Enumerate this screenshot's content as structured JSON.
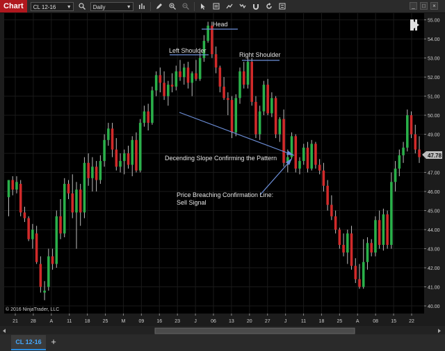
{
  "toolbar": {
    "chart_label": "Chart",
    "instrument": "CL 12-16",
    "interval": "Daily",
    "icons": [
      "search-icon",
      "bars-type-icon",
      "pencil-icon",
      "zoom-in-icon",
      "zoom-out-icon",
      "pointer-icon",
      "data-box-icon",
      "strategies-icon",
      "indicators-icon",
      "magnet-icon",
      "reload-icon",
      "properties-icon"
    ]
  },
  "window_buttons": [
    "minimize",
    "maximize",
    "close"
  ],
  "bottom_tabs": {
    "instrument_tab": "CL 12-16",
    "add_label": "+"
  },
  "chart_data": {
    "type": "candlestick",
    "price_axis": {
      "ylim": [
        39.6,
        55.35
      ],
      "ticks": [
        "55.00",
        "54.00",
        "53.00",
        "52.00",
        "51.00",
        "50.00",
        "49.00",
        "48.00",
        "47.00",
        "46.00",
        "45.00",
        "44.00",
        "43.00",
        "42.00",
        "41.00",
        "40.00"
      ],
      "last_price": "47.78"
    },
    "time_axis": {
      "labels": [
        "21",
        "28",
        "A",
        "11",
        "18",
        "25",
        "M",
        "09",
        "16",
        "23",
        "J",
        "06",
        "13",
        "20",
        "27",
        "J",
        "11",
        "18",
        "25",
        "A",
        "08",
        "15",
        "22"
      ]
    },
    "candles": [
      {
        "o": 45.7,
        "h": 46.6,
        "l": 44.7,
        "c": 46.6
      },
      {
        "o": 46.6,
        "h": 46.8,
        "l": 45.8,
        "c": 46.1
      },
      {
        "o": 46.1,
        "h": 46.8,
        "l": 45.9,
        "c": 46.5
      },
      {
        "o": 46.4,
        "h": 46.6,
        "l": 44.7,
        "c": 44.9
      },
      {
        "o": 44.9,
        "h": 45.2,
        "l": 44.4,
        "c": 44.6
      },
      {
        "o": 44.6,
        "h": 44.7,
        "l": 43.4,
        "c": 43.5
      },
      {
        "o": 43.5,
        "h": 44.3,
        "l": 43.0,
        "c": 44.0
      },
      {
        "o": 43.8,
        "h": 44.2,
        "l": 42.2,
        "c": 42.3
      },
      {
        "o": 42.2,
        "h": 42.6,
        "l": 40.7,
        "c": 41.0
      },
      {
        "o": 40.7,
        "h": 41.3,
        "l": 40.3,
        "c": 40.8
      },
      {
        "o": 41.0,
        "h": 43.0,
        "l": 40.8,
        "c": 42.6
      },
      {
        "o": 42.6,
        "h": 43.0,
        "l": 41.9,
        "c": 42.2
      },
      {
        "o": 42.2,
        "h": 45.0,
        "l": 42.0,
        "c": 44.7
      },
      {
        "o": 44.7,
        "h": 45.6,
        "l": 43.5,
        "c": 43.8
      },
      {
        "o": 43.8,
        "h": 46.7,
        "l": 43.6,
        "c": 46.4
      },
      {
        "o": 46.4,
        "h": 46.6,
        "l": 45.6,
        "c": 45.9
      },
      {
        "o": 45.9,
        "h": 46.9,
        "l": 44.6,
        "c": 44.9
      },
      {
        "o": 44.9,
        "h": 46.5,
        "l": 43.0,
        "c": 46.1
      },
      {
        "o": 46.1,
        "h": 46.4,
        "l": 44.2,
        "c": 44.9
      },
      {
        "o": 44.9,
        "h": 47.8,
        "l": 44.6,
        "c": 47.5
      },
      {
        "o": 47.5,
        "h": 48.0,
        "l": 46.3,
        "c": 46.7
      },
      {
        "o": 46.7,
        "h": 47.8,
        "l": 46.0,
        "c": 47.3
      },
      {
        "o": 47.3,
        "h": 47.6,
        "l": 46.0,
        "c": 46.6
      },
      {
        "o": 46.6,
        "h": 47.9,
        "l": 46.4,
        "c": 47.6
      },
      {
        "o": 47.6,
        "h": 49.0,
        "l": 47.3,
        "c": 48.7
      },
      {
        "o": 48.7,
        "h": 49.6,
        "l": 48.4,
        "c": 49.3
      },
      {
        "o": 49.3,
        "h": 49.6,
        "l": 47.8,
        "c": 48.2
      },
      {
        "o": 48.2,
        "h": 48.8,
        "l": 47.1,
        "c": 47.3
      },
      {
        "o": 47.3,
        "h": 48.0,
        "l": 47.0,
        "c": 47.6
      },
      {
        "o": 47.6,
        "h": 48.2,
        "l": 46.9,
        "c": 48.0
      },
      {
        "o": 48.0,
        "h": 48.4,
        "l": 47.2,
        "c": 47.4
      },
      {
        "o": 47.4,
        "h": 48.9,
        "l": 46.8,
        "c": 48.7
      },
      {
        "o": 48.7,
        "h": 49.1,
        "l": 47.0,
        "c": 47.1
      },
      {
        "o": 47.1,
        "h": 49.8,
        "l": 47.0,
        "c": 49.6
      },
      {
        "o": 49.6,
        "h": 50.5,
        "l": 49.4,
        "c": 50.2
      },
      {
        "o": 50.2,
        "h": 50.6,
        "l": 49.2,
        "c": 49.6
      },
      {
        "o": 49.6,
        "h": 51.5,
        "l": 49.5,
        "c": 51.3
      },
      {
        "o": 51.3,
        "h": 52.3,
        "l": 51.0,
        "c": 52.1
      },
      {
        "o": 52.1,
        "h": 52.5,
        "l": 51.2,
        "c": 51.7
      },
      {
        "o": 51.7,
        "h": 52.3,
        "l": 50.8,
        "c": 51.0
      },
      {
        "o": 51.0,
        "h": 51.8,
        "l": 50.5,
        "c": 51.6
      },
      {
        "o": 51.6,
        "h": 52.2,
        "l": 51.2,
        "c": 51.5
      },
      {
        "o": 51.5,
        "h": 52.6,
        "l": 51.3,
        "c": 52.3
      },
      {
        "o": 52.3,
        "h": 52.9,
        "l": 51.8,
        "c": 52.0
      },
      {
        "o": 52.0,
        "h": 52.7,
        "l": 51.6,
        "c": 52.5
      },
      {
        "o": 52.5,
        "h": 52.8,
        "l": 51.4,
        "c": 51.7
      },
      {
        "o": 51.7,
        "h": 52.3,
        "l": 51.0,
        "c": 52.2
      },
      {
        "o": 52.2,
        "h": 52.9,
        "l": 51.8,
        "c": 51.9
      },
      {
        "o": 51.9,
        "h": 53.3,
        "l": 51.8,
        "c": 53.0
      },
      {
        "o": 53.0,
        "h": 54.2,
        "l": 52.8,
        "c": 53.9
      },
      {
        "o": 53.9,
        "h": 54.9,
        "l": 53.8,
        "c": 54.7
      },
      {
        "o": 54.7,
        "h": 54.9,
        "l": 53.0,
        "c": 53.2
      },
      {
        "o": 53.2,
        "h": 53.6,
        "l": 52.2,
        "c": 52.5
      },
      {
        "o": 52.5,
        "h": 52.6,
        "l": 51.2,
        "c": 51.5
      },
      {
        "o": 51.5,
        "h": 52.0,
        "l": 50.8,
        "c": 50.9
      },
      {
        "o": 50.9,
        "h": 51.2,
        "l": 50.0,
        "c": 50.8
      },
      {
        "o": 50.8,
        "h": 51.0,
        "l": 48.8,
        "c": 49.1
      },
      {
        "o": 49.1,
        "h": 51.1,
        "l": 48.9,
        "c": 50.9
      },
      {
        "o": 50.9,
        "h": 52.5,
        "l": 50.6,
        "c": 52.3
      },
      {
        "o": 52.3,
        "h": 52.8,
        "l": 51.4,
        "c": 51.6
      },
      {
        "o": 51.6,
        "h": 53.0,
        "l": 51.4,
        "c": 52.8
      },
      {
        "o": 52.8,
        "h": 53.0,
        "l": 50.5,
        "c": 50.7
      },
      {
        "o": 50.7,
        "h": 51.0,
        "l": 48.8,
        "c": 49.0
      },
      {
        "o": 49.0,
        "h": 50.5,
        "l": 48.7,
        "c": 50.2
      },
      {
        "o": 50.2,
        "h": 51.8,
        "l": 50.0,
        "c": 51.6
      },
      {
        "o": 51.6,
        "h": 51.9,
        "l": 50.0,
        "c": 50.1
      },
      {
        "o": 50.1,
        "h": 51.2,
        "l": 49.9,
        "c": 50.9
      },
      {
        "o": 50.9,
        "h": 51.0,
        "l": 48.8,
        "c": 49.0
      },
      {
        "o": 49.0,
        "h": 49.9,
        "l": 48.6,
        "c": 49.8
      },
      {
        "o": 49.8,
        "h": 50.3,
        "l": 47.3,
        "c": 47.5
      },
      {
        "o": 47.5,
        "h": 48.2,
        "l": 47.0,
        "c": 47.8
      },
      {
        "o": 47.8,
        "h": 49.1,
        "l": 47.7,
        "c": 48.9
      },
      {
        "o": 48.9,
        "h": 49.0,
        "l": 47.0,
        "c": 47.2
      },
      {
        "o": 47.2,
        "h": 47.8,
        "l": 46.9,
        "c": 47.6
      },
      {
        "o": 47.6,
        "h": 48.5,
        "l": 47.4,
        "c": 48.3
      },
      {
        "o": 48.3,
        "h": 48.6,
        "l": 47.0,
        "c": 47.2
      },
      {
        "o": 47.2,
        "h": 48.7,
        "l": 47.1,
        "c": 48.5
      },
      {
        "o": 48.5,
        "h": 48.6,
        "l": 47.2,
        "c": 47.4
      },
      {
        "o": 47.4,
        "h": 47.7,
        "l": 46.9,
        "c": 47.1
      },
      {
        "o": 47.1,
        "h": 47.5,
        "l": 46.0,
        "c": 46.3
      },
      {
        "o": 46.3,
        "h": 46.6,
        "l": 45.0,
        "c": 45.3
      },
      {
        "o": 45.3,
        "h": 45.8,
        "l": 44.5,
        "c": 44.7
      },
      {
        "o": 44.7,
        "h": 45.0,
        "l": 43.8,
        "c": 44.0
      },
      {
        "o": 44.0,
        "h": 44.1,
        "l": 43.0,
        "c": 43.2
      },
      {
        "o": 43.2,
        "h": 43.8,
        "l": 42.6,
        "c": 42.8
      },
      {
        "o": 42.8,
        "h": 44.0,
        "l": 42.2,
        "c": 43.8
      },
      {
        "o": 43.8,
        "h": 44.2,
        "l": 41.9,
        "c": 42.1
      },
      {
        "o": 42.1,
        "h": 42.5,
        "l": 41.2,
        "c": 41.4
      },
      {
        "o": 41.4,
        "h": 42.2,
        "l": 40.9,
        "c": 41.0
      },
      {
        "o": 41.0,
        "h": 43.5,
        "l": 40.9,
        "c": 42.3
      },
      {
        "o": 42.3,
        "h": 43.6,
        "l": 41.9,
        "c": 43.3
      },
      {
        "o": 43.3,
        "h": 43.5,
        "l": 42.6,
        "c": 42.8
      },
      {
        "o": 42.8,
        "h": 44.7,
        "l": 42.6,
        "c": 44.5
      },
      {
        "o": 44.5,
        "h": 45.0,
        "l": 43.0,
        "c": 43.2
      },
      {
        "o": 43.2,
        "h": 45.1,
        "l": 42.9,
        "c": 44.8
      },
      {
        "o": 44.8,
        "h": 45.0,
        "l": 43.0,
        "c": 43.2
      },
      {
        "o": 43.2,
        "h": 47.0,
        "l": 43.0,
        "c": 46.5
      },
      {
        "o": 46.5,
        "h": 47.6,
        "l": 46.0,
        "c": 47.2
      },
      {
        "o": 47.2,
        "h": 48.2,
        "l": 46.8,
        "c": 47.9
      },
      {
        "o": 47.9,
        "h": 48.6,
        "l": 47.5,
        "c": 48.3
      },
      {
        "o": 48.3,
        "h": 50.3,
        "l": 48.1,
        "c": 50.0
      },
      {
        "o": 50.0,
        "h": 50.2,
        "l": 48.8,
        "c": 49.0
      },
      {
        "o": 49.0,
        "h": 49.5,
        "l": 48.0,
        "c": 48.2
      },
      {
        "o": 48.2,
        "h": 48.9,
        "l": 47.5,
        "c": 47.8
      }
    ],
    "annotations": [
      {
        "text": "Head"
      },
      {
        "text": "Left Shoulder"
      },
      {
        "text": "Right Shoulder"
      },
      {
        "text": "Decending Slope Confirming the Pattern"
      },
      {
        "text": "Price Breaching Confirmation Line:"
      },
      {
        "text": "Sell Signal"
      }
    ],
    "copyright": "© 2016 NinjaTrader, LLC",
    "colors": {
      "up": "#2ab04a",
      "down": "#d12a2a",
      "wick": "#bdbdbd",
      "annotation_line": "#6d8fd9",
      "background": "#000000",
      "grid": "#1a1a1a"
    }
  }
}
